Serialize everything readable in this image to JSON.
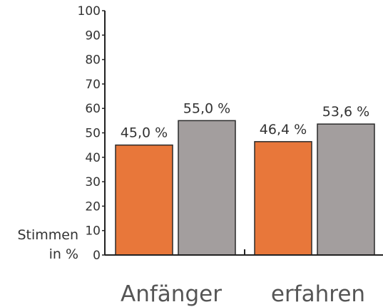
{
  "chart_data": {
    "type": "bar",
    "categories": [
      "Anfänger",
      "erfahren"
    ],
    "series": [
      {
        "values": [
          45.0,
          46.4
        ],
        "color": "#E8773A"
      },
      {
        "values": [
          55.0,
          53.6
        ],
        "color": "#A39E9E"
      }
    ],
    "data_labels": [
      [
        "45,0 %",
        "46,4 %"
      ],
      [
        "55,0 %",
        "53,6 %"
      ]
    ],
    "ylabel_lines": [
      "Stimmen",
      "in %"
    ],
    "ylim": [
      0,
      100
    ],
    "yticks": [
      0,
      10,
      20,
      30,
      40,
      50,
      60,
      70,
      80,
      90,
      100
    ],
    "grid": false
  }
}
